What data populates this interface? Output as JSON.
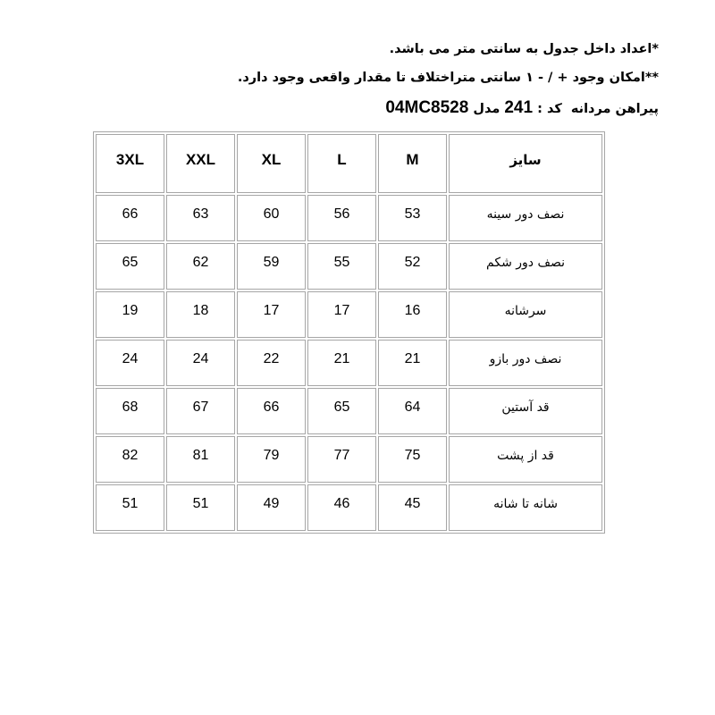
{
  "notes": {
    "line1": "*اعداد داخل جدول به سانتی متر می باشد.",
    "line2": "**امکان وجود + / - ۱ سانتی متراختلاف تا مقدار واقعی وجود دارد.",
    "product": {
      "prefix": "پیراهن مردانه  کد : ",
      "code": "241",
      "middle": " مدل ",
      "model": "04MC8528"
    }
  },
  "table": {
    "size_header": "سایز",
    "sizes": [
      "M",
      "L",
      "XL",
      "XXL",
      "3XL"
    ],
    "rows": [
      {
        "label": "نصف دور سینه",
        "values": [
          53,
          56,
          60,
          63,
          66
        ]
      },
      {
        "label": "نصف دور شکم",
        "values": [
          52,
          55,
          59,
          62,
          65
        ]
      },
      {
        "label": "سرشانه",
        "values": [
          16,
          17,
          17,
          18,
          19
        ]
      },
      {
        "label": "نصف دور بازو",
        "values": [
          21,
          21,
          22,
          24,
          24
        ]
      },
      {
        "label": "قد آستین",
        "values": [
          64,
          65,
          66,
          67,
          68
        ]
      },
      {
        "label": "قد از پشت",
        "values": [
          75,
          77,
          79,
          81,
          82
        ]
      },
      {
        "label": "شانه تا شانه",
        "values": [
          45,
          46,
          49,
          51,
          51
        ]
      }
    ]
  },
  "colors": {
    "background": "#ffffff",
    "text": "#000000",
    "table_border": "#a6a6a6"
  }
}
